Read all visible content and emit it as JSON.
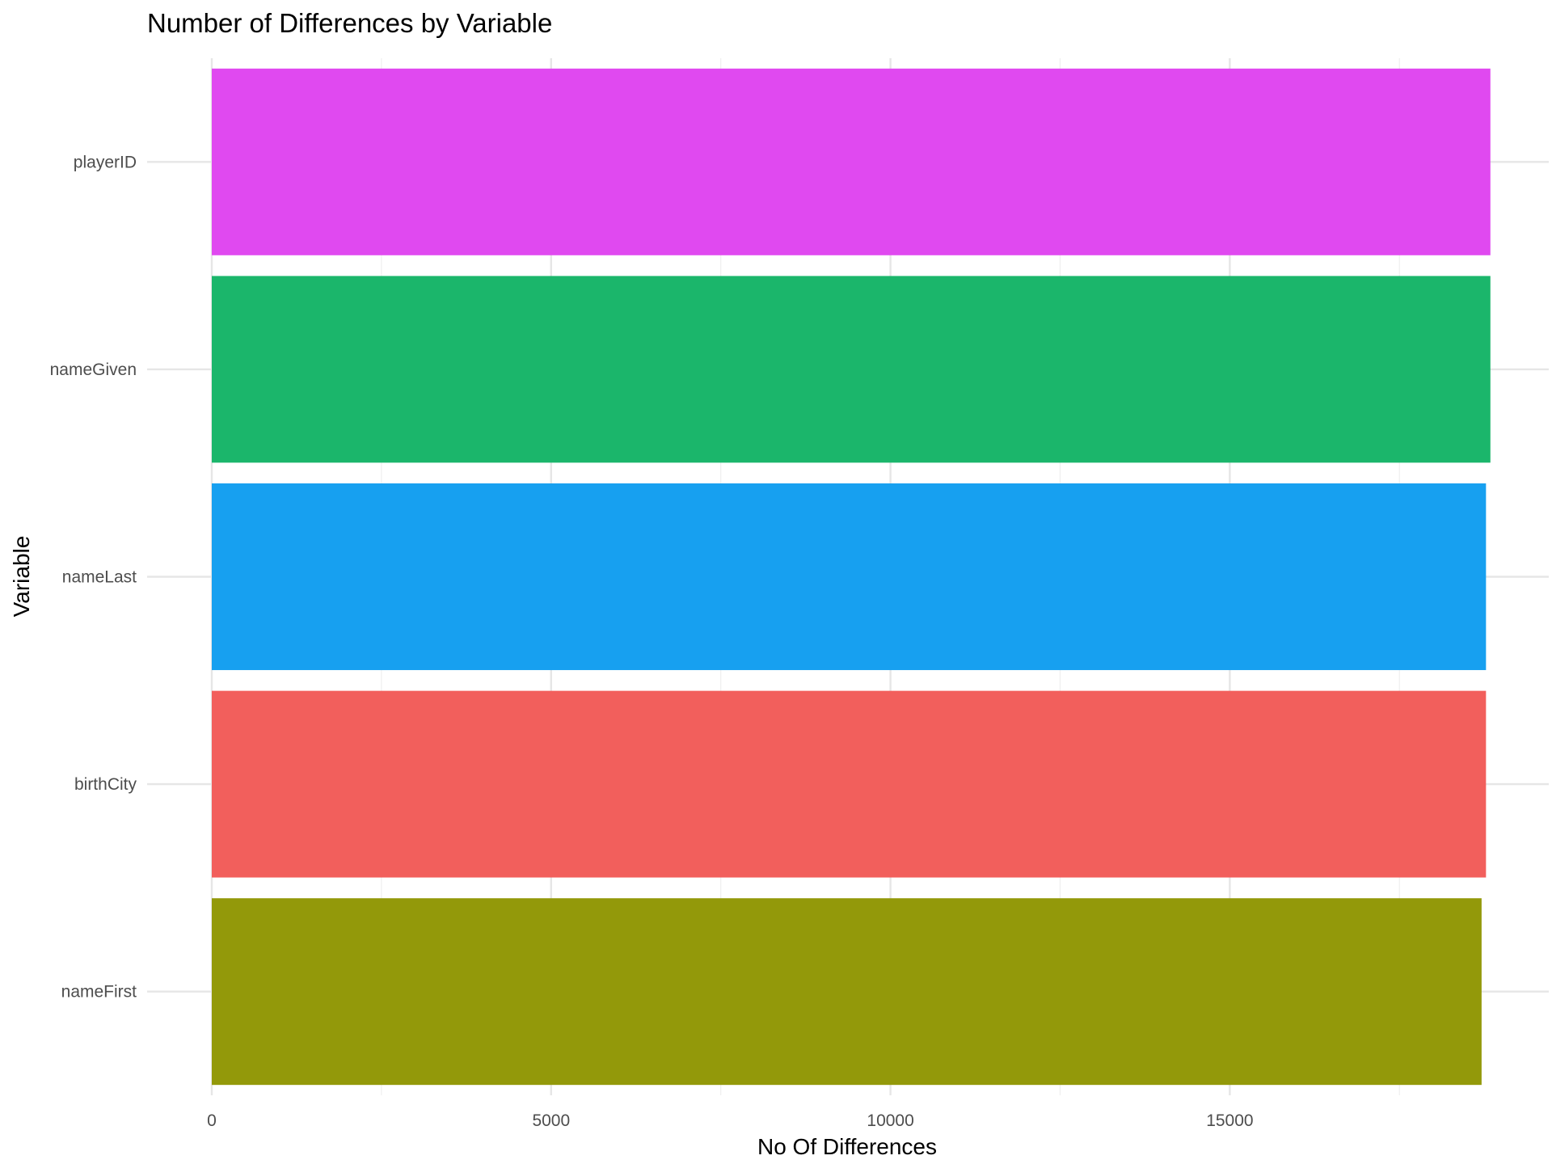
{
  "chart_data": {
    "type": "bar",
    "orientation": "horizontal",
    "title": "Number of Differences by Variable",
    "xlabel": "No Of Differences",
    "ylabel": "Variable",
    "categories": [
      "nameFirst",
      "birthCity",
      "nameLast",
      "nameGiven",
      "playerID"
    ],
    "values": [
      18710,
      18775,
      18775,
      18840,
      18840
    ],
    "colors": [
      "#93990A",
      "#F25F5C",
      "#17A0F0",
      "#1BB66B",
      "#E049F0"
    ],
    "xlim": [
      0,
      19700
    ],
    "xticks": [
      0,
      5000,
      10000,
      15000
    ],
    "xtick_labels": [
      "0",
      "5000",
      "10000",
      "15000"
    ],
    "grid": true,
    "legend": "none"
  }
}
